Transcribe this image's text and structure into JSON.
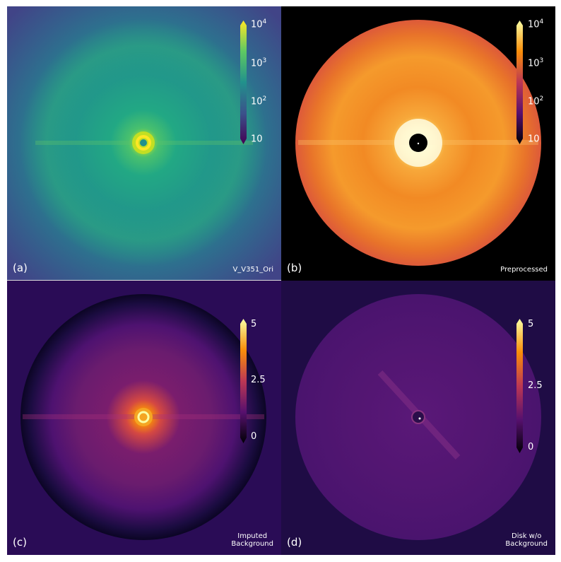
{
  "figure": {
    "panels": [
      {
        "id": "a",
        "letter": "(a)",
        "caption": "V_V351_Ori",
        "colormap": "viridis",
        "colorbar": {
          "scale": "log",
          "ticks": [
            {
              "base": "10",
              "exp": "4"
            },
            {
              "base": "10",
              "exp": "3"
            },
            {
              "base": "10",
              "exp": "2"
            },
            {
              "base": "10",
              "exp": ""
            }
          ]
        }
      },
      {
        "id": "b",
        "letter": "(b)",
        "caption": "Preprocessed",
        "colormap": "inferno",
        "colorbar": {
          "scale": "log",
          "ticks": [
            {
              "base": "10",
              "exp": "4"
            },
            {
              "base": "10",
              "exp": "3"
            },
            {
              "base": "10",
              "exp": "2"
            },
            {
              "base": "10",
              "exp": ""
            }
          ]
        }
      },
      {
        "id": "c",
        "letter": "(c)",
        "caption": "Imputed\nBackground",
        "colormap": "inferno",
        "colorbar": {
          "scale": "linear",
          "ticks": [
            {
              "base": "5",
              "exp": ""
            },
            {
              "base": "2.5",
              "exp": ""
            },
            {
              "base": "0",
              "exp": ""
            }
          ]
        }
      },
      {
        "id": "d",
        "letter": "(d)",
        "caption": "Disk w/o\nBackground",
        "colormap": "inferno",
        "colorbar": {
          "scale": "linear",
          "ticks": [
            {
              "base": "5",
              "exp": ""
            },
            {
              "base": "2.5",
              "exp": ""
            },
            {
              "base": "0",
              "exp": ""
            }
          ]
        }
      }
    ],
    "colors": {
      "viridis_bg": "#3a4e8c",
      "viridis_disk": "#23908c",
      "viridis_core": "#d8e219",
      "inferno_bg_c": "#2a0c56",
      "inferno_disk": "#e86020",
      "inferno_core": "#fcffa4"
    }
  }
}
